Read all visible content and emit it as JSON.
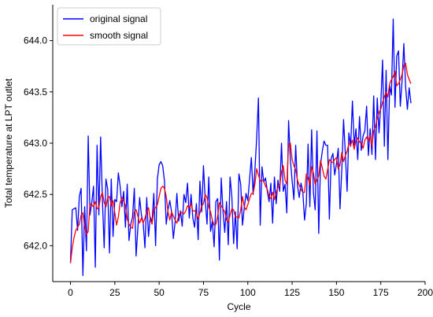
{
  "chart_data": {
    "type": "line",
    "xlabel": "Cycle",
    "ylabel": "Total temperature at LPT outlet",
    "xlim": [
      -10,
      200
    ],
    "ylim": [
      641.65,
      644.35
    ],
    "xticks": [
      0,
      25,
      50,
      75,
      100,
      125,
      150,
      175,
      200
    ],
    "xtick_labels": [
      "0",
      "25",
      "50",
      "75",
      "100",
      "125",
      "150",
      "175",
      "200"
    ],
    "yticks": [
      642.0,
      642.5,
      643.0,
      643.5,
      644.0
    ],
    "ytick_labels": [
      "642.0",
      "642.5",
      "643.0",
      "643.5",
      "644.0"
    ],
    "grid": false,
    "legend_position": "top-left",
    "series": [
      {
        "name": "original signal",
        "color": "#0000ff",
        "x": [
          0,
          1,
          2,
          3,
          4,
          5,
          6,
          7,
          8,
          9,
          10,
          11,
          12,
          13,
          14,
          15,
          16,
          17,
          18,
          19,
          20,
          21,
          22,
          23,
          24,
          25,
          26,
          27,
          28,
          29,
          30,
          31,
          32,
          33,
          34,
          35,
          36,
          37,
          38,
          39,
          40,
          41,
          42,
          43,
          44,
          45,
          46,
          47,
          48,
          49,
          50,
          51,
          52,
          53,
          54,
          55,
          56,
          57,
          58,
          59,
          60,
          61,
          62,
          63,
          64,
          65,
          66,
          67,
          68,
          69,
          70,
          71,
          72,
          73,
          74,
          75,
          76,
          77,
          78,
          79,
          80,
          81,
          82,
          83,
          84,
          85,
          86,
          87,
          88,
          89,
          90,
          91,
          92,
          93,
          94,
          95,
          96,
          97,
          98,
          99,
          100,
          101,
          102,
          103,
          104,
          105,
          106,
          107,
          108,
          109,
          110,
          111,
          112,
          113,
          114,
          115,
          116,
          117,
          118,
          119,
          120,
          121,
          122,
          123,
          124,
          125,
          126,
          127,
          128,
          129,
          130,
          131,
          132,
          133,
          134,
          135,
          136,
          137,
          138,
          139,
          140,
          141,
          142,
          143,
          144,
          145,
          146,
          147,
          148,
          149,
          150,
          151,
          152,
          153,
          154,
          155,
          156,
          157,
          158,
          159,
          160,
          161,
          162,
          163,
          164,
          165,
          166,
          167,
          168,
          169,
          170,
          171,
          172,
          173,
          174,
          175,
          176,
          177,
          178,
          179,
          180,
          181,
          182,
          183,
          184,
          185,
          186,
          187,
          188,
          189,
          190,
          191,
          192
        ],
        "y": [
          641.83,
          642.35,
          642.36,
          642.37,
          642.15,
          642.48,
          642.56,
          641.71,
          642.38,
          641.95,
          643.07,
          642.3,
          642.42,
          642.58,
          641.79,
          642.98,
          642.3,
          643.06,
          642.45,
          641.98,
          642.65,
          642.55,
          641.93,
          642.65,
          642.09,
          642.45,
          642.43,
          642.71,
          642.58,
          642.38,
          642.53,
          642.18,
          642.6,
          642.05,
          642.21,
          642.28,
          642.56,
          641.9,
          642.17,
          642.47,
          642.3,
          642.22,
          641.98,
          642.47,
          642.09,
          642.28,
          642.23,
          642.51,
          642.0,
          642.65,
          642.79,
          642.82,
          642.78,
          642.63,
          642.21,
          642.35,
          642.44,
          642.33,
          642.07,
          642.23,
          642.51,
          642.24,
          642.34,
          642.19,
          642.5,
          642.42,
          642.61,
          642.27,
          642.5,
          642.27,
          642.18,
          642.41,
          642.06,
          642.63,
          642.33,
          642.78,
          642.44,
          642.21,
          642.67,
          642.14,
          642.24,
          641.99,
          642.43,
          642.46,
          641.86,
          642.66,
          642.34,
          642.13,
          642.43,
          642.01,
          642.67,
          642.48,
          642.02,
          642.33,
          641.97,
          642.7,
          642.6,
          642.2,
          642.37,
          642.51,
          642.44,
          642.65,
          642.86,
          642.5,
          642.74,
          643.05,
          643.44,
          642.2,
          642.77,
          642.62,
          642.66,
          642.53,
          642.43,
          642.61,
          642.22,
          642.67,
          642.41,
          642.64,
          642.53,
          643.0,
          642.53,
          642.6,
          642.32,
          643.22,
          642.84,
          642.63,
          642.45,
          642.98,
          642.59,
          642.47,
          642.61,
          642.53,
          642.25,
          642.41,
          642.99,
          642.38,
          643.13,
          642.52,
          642.35,
          643.12,
          642.12,
          642.79,
          642.92,
          643.02,
          642.98,
          642.98,
          642.26,
          642.85,
          642.9,
          642.69,
          642.8,
          642.95,
          642.36,
          642.74,
          643.23,
          642.9,
          642.53,
          643.1,
          642.97,
          643.41,
          642.98,
          643.14,
          642.84,
          643.26,
          642.93,
          643.07,
          643.12,
          643.36,
          642.88,
          643.14,
          642.89,
          643.46,
          642.84,
          643.44,
          643.1,
          643.38,
          643.81,
          642.97,
          643.71,
          642.84,
          643.56,
          643.47,
          644.21,
          643.35,
          643.85,
          643.9,
          643.36,
          643.61,
          643.97,
          643.55,
          643.33,
          643.54,
          643.39
        ]
      },
      {
        "name": "smooth signal",
        "color": "#ff0000",
        "x": [
          0,
          1,
          2,
          3,
          4,
          5,
          6,
          7,
          8,
          9,
          10,
          11,
          12,
          13,
          14,
          15,
          16,
          17,
          18,
          19,
          20,
          21,
          22,
          23,
          24,
          25,
          26,
          27,
          28,
          29,
          30,
          31,
          32,
          33,
          34,
          35,
          36,
          37,
          38,
          39,
          40,
          41,
          42,
          43,
          44,
          45,
          46,
          47,
          48,
          49,
          50,
          51,
          52,
          53,
          54,
          55,
          56,
          57,
          58,
          59,
          60,
          61,
          62,
          63,
          64,
          65,
          66,
          67,
          68,
          69,
          70,
          71,
          72,
          73,
          74,
          75,
          76,
          77,
          78,
          79,
          80,
          81,
          82,
          83,
          84,
          85,
          86,
          87,
          88,
          89,
          90,
          91,
          92,
          93,
          94,
          95,
          96,
          97,
          98,
          99,
          100,
          101,
          102,
          103,
          104,
          105,
          106,
          107,
          108,
          109,
          110,
          111,
          112,
          113,
          114,
          115,
          116,
          117,
          118,
          119,
          120,
          121,
          122,
          123,
          124,
          125,
          126,
          127,
          128,
          129,
          130,
          131,
          132,
          133,
          134,
          135,
          136,
          137,
          138,
          139,
          140,
          141,
          142,
          143,
          144,
          145,
          146,
          147,
          148,
          149,
          150,
          151,
          152,
          153,
          154,
          155,
          156,
          157,
          158,
          159,
          160,
          161,
          162,
          163,
          164,
          165,
          166,
          167,
          168,
          169,
          170,
          171,
          172,
          173,
          174,
          175,
          176,
          177,
          178,
          179,
          180,
          181,
          182,
          183,
          184,
          185,
          186,
          187,
          188,
          189,
          190,
          191,
          192
        ],
        "y": [
          641.83,
          641.98,
          642.08,
          642.15,
          642.18,
          642.21,
          642.3,
          642.32,
          642.19,
          642.11,
          642.14,
          642.41,
          642.4,
          642.38,
          642.43,
          642.36,
          642.37,
          642.48,
          642.52,
          642.42,
          642.38,
          642.47,
          642.48,
          642.39,
          642.44,
          642.32,
          642.2,
          642.28,
          642.42,
          642.47,
          642.44,
          642.39,
          642.26,
          642.21,
          642.18,
          642.17,
          642.33,
          642.35,
          642.29,
          642.22,
          642.27,
          642.22,
          642.27,
          642.33,
          642.37,
          642.26,
          642.21,
          642.36,
          642.37,
          642.4,
          642.48,
          642.56,
          642.58,
          642.56,
          642.48,
          642.33,
          642.25,
          642.33,
          642.29,
          642.25,
          642.22,
          642.29,
          642.33,
          642.32,
          642.31,
          642.34,
          642.39,
          642.37,
          642.41,
          642.34,
          642.34,
          642.32,
          642.26,
          642.32,
          642.39,
          642.41,
          642.5,
          642.47,
          642.38,
          642.33,
          642.25,
          642.2,
          642.21,
          642.29,
          642.42,
          642.39,
          642.36,
          642.33,
          642.25,
          642.23,
          642.3,
          642.36,
          642.35,
          642.28,
          642.28,
          642.27,
          642.35,
          642.48,
          642.38,
          642.35,
          642.4,
          642.46,
          642.51,
          642.51,
          642.6,
          642.75,
          642.69,
          642.63,
          642.64,
          642.63,
          642.58,
          642.55,
          642.48,
          642.46,
          642.52,
          642.45,
          642.52,
          642.57,
          642.58,
          642.72,
          642.78,
          642.64,
          642.6,
          642.99,
          643.0,
          642.84,
          642.78,
          642.74,
          642.64,
          642.59,
          642.55,
          642.52,
          642.52,
          642.7,
          642.66,
          642.59,
          642.77,
          642.71,
          642.6,
          642.64,
          642.68,
          642.83,
          642.76,
          642.68,
          642.65,
          642.74,
          642.84,
          642.82,
          642.81,
          642.84,
          642.86,
          642.75,
          642.79,
          642.91,
          642.82,
          642.88,
          642.92,
          643.0,
          642.98,
          643.03,
          642.94,
          643.03,
          643.05,
          643.01,
          643.0,
          642.95,
          643.03,
          643.06,
          643.02,
          643.08,
          642.97,
          643.12,
          643.16,
          643.24,
          643.3,
          643.33,
          643.4,
          643.45,
          643.5,
          643.45,
          643.58,
          643.62,
          643.65,
          643.7,
          643.56,
          643.58,
          643.62,
          643.67,
          643.76,
          643.78,
          643.67,
          643.62,
          643.58
        ]
      }
    ]
  }
}
